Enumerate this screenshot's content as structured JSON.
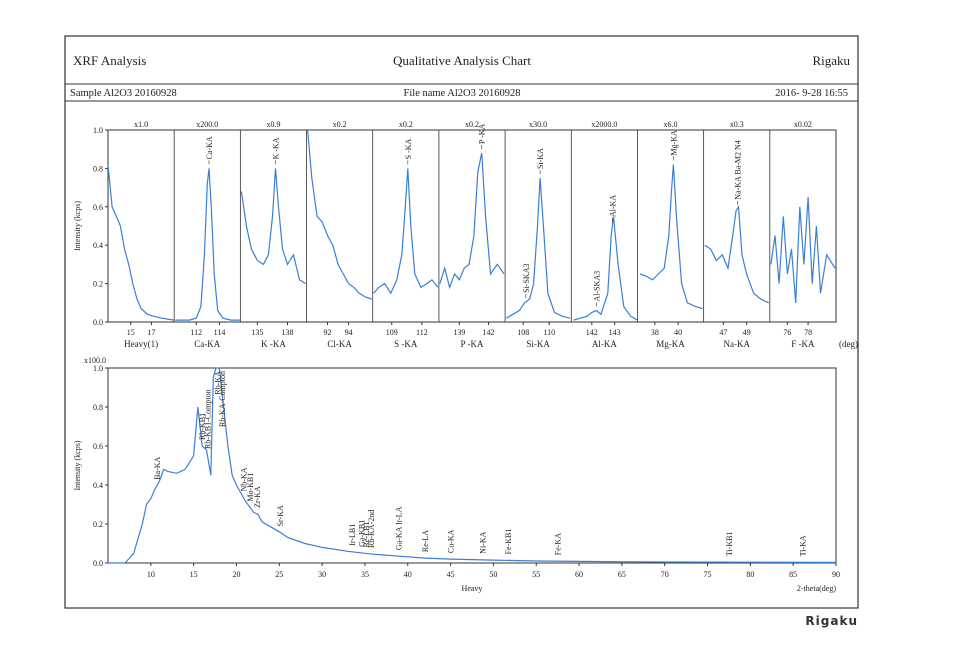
{
  "header": {
    "left": "XRF Analysis",
    "center": "Qualitative Analysis Chart",
    "right": "Rigaku"
  },
  "info": {
    "sample": "Sample  Al2O3 20160928",
    "file": "File name  Al2O3 20160928",
    "date": "2016- 9-28 16:55"
  },
  "footer": "Rigaku",
  "chart_data": [
    {
      "type": "line",
      "y_label": "Intensity (kcps)",
      "x_unit": "(deg)",
      "color": "#3a7fd5",
      "ylim": [
        0,
        1
      ],
      "yticks": [
        {
          "value": 0,
          "label": "0.0"
        },
        {
          "value": 0.2,
          "label": "0.2"
        },
        {
          "value": 0.4,
          "label": "0.4"
        },
        {
          "value": 0.6,
          "label": "0.6"
        },
        {
          "value": 0.8,
          "label": "0.8"
        },
        {
          "value": 1,
          "label": "1.0"
        }
      ],
      "panels": [
        {
          "scale": "x1.0",
          "label": "Heavy(1)",
          "xlim": [
            12.8,
            19.2
          ],
          "xticks": [
            15,
            17
          ],
          "peaks": [],
          "x": [
            12.8,
            13.2,
            13.6,
            14.0,
            14.4,
            14.8,
            15.2,
            15.6,
            16.0,
            16.6,
            17.2,
            18.0,
            19.2
          ],
          "values": [
            0.82,
            0.6,
            0.55,
            0.5,
            0.38,
            0.3,
            0.2,
            0.12,
            0.07,
            0.04,
            0.03,
            0.02,
            0.01
          ]
        },
        {
          "scale": "x200.0",
          "label": "Ca-KA",
          "xlim": [
            110.1,
            115.8
          ],
          "xticks": [
            112,
            114
          ],
          "peaks": [
            {
              "text": "Ca-KA",
              "x": 113.1
            }
          ],
          "x": [
            110.2,
            110.8,
            111.4,
            112.0,
            112.4,
            112.7,
            112.95,
            113.1,
            113.3,
            113.55,
            113.85,
            114.3,
            115.0,
            115.8
          ],
          "values": [
            0.01,
            0.01,
            0.01,
            0.02,
            0.08,
            0.35,
            0.72,
            0.8,
            0.6,
            0.25,
            0.06,
            0.02,
            0.01,
            0.01
          ]
        },
        {
          "scale": "x0.9",
          "label": "K -KA",
          "xlim": [
            133.3,
            139.9
          ],
          "xticks": [
            135,
            138
          ],
          "peaks": [
            {
              "text": "K -KA",
              "x": 136.8
            }
          ],
          "x": [
            133.4,
            133.9,
            134.4,
            135.0,
            135.6,
            136.1,
            136.5,
            136.8,
            137.1,
            137.5,
            138.0,
            138.6,
            139.2,
            139.8
          ],
          "values": [
            0.68,
            0.5,
            0.38,
            0.32,
            0.3,
            0.35,
            0.55,
            0.8,
            0.6,
            0.38,
            0.3,
            0.35,
            0.22,
            0.2
          ]
        },
        {
          "scale": "x0.2",
          "label": "Cl-KA",
          "xlim": [
            90,
            96.3
          ],
          "xticks": [
            92,
            94
          ],
          "peaks": [],
          "x": [
            90.1,
            90.5,
            91.0,
            91.5,
            92.0,
            92.5,
            93.0,
            93.5,
            94.0,
            94.5,
            95.0,
            95.6,
            96.2
          ],
          "values": [
            1.0,
            0.75,
            0.55,
            0.52,
            0.45,
            0.4,
            0.3,
            0.25,
            0.2,
            0.18,
            0.15,
            0.13,
            0.12
          ]
        },
        {
          "scale": "x0.2",
          "label": "S -KA",
          "xlim": [
            107.1,
            113.7
          ],
          "xticks": [
            109,
            112
          ],
          "peaks": [
            {
              "text": "S -KA",
              "x": 110.6
            }
          ],
          "x": [
            107.2,
            107.7,
            108.3,
            108.9,
            109.5,
            110.0,
            110.35,
            110.6,
            110.9,
            111.3,
            111.9,
            112.5,
            113.0,
            113.6
          ],
          "values": [
            0.15,
            0.18,
            0.2,
            0.15,
            0.22,
            0.35,
            0.6,
            0.8,
            0.5,
            0.25,
            0.18,
            0.2,
            0.22,
            0.18
          ]
        },
        {
          "scale": "x0.2",
          "label": "P -KA",
          "xlim": [
            136.9,
            143.7
          ],
          "xticks": [
            139,
            142
          ],
          "peaks": [
            {
              "text": "P -KA",
              "x": 141.3
            }
          ],
          "x": [
            137.0,
            137.5,
            138.0,
            138.5,
            139.0,
            139.5,
            140.0,
            140.5,
            140.9,
            141.3,
            141.7,
            142.2,
            142.9,
            143.6
          ],
          "values": [
            0.2,
            0.28,
            0.18,
            0.25,
            0.22,
            0.28,
            0.3,
            0.45,
            0.78,
            0.88,
            0.55,
            0.25,
            0.3,
            0.25
          ]
        },
        {
          "scale": "x30.0",
          "label": "Si-KA",
          "xlim": [
            106.6,
            111.7
          ],
          "xticks": [
            108,
            110
          ],
          "peaks": [
            {
              "text": "Si-SKA3",
              "x": 108.2
            },
            {
              "text": "Si-KA",
              "x": 109.3
            }
          ],
          "x": [
            106.7,
            107.2,
            107.7,
            108.1,
            108.5,
            108.8,
            109.1,
            109.3,
            109.55,
            109.9,
            110.4,
            111.0,
            111.6
          ],
          "values": [
            0.02,
            0.04,
            0.06,
            0.1,
            0.12,
            0.2,
            0.5,
            0.75,
            0.5,
            0.15,
            0.05,
            0.03,
            0.02
          ]
        },
        {
          "scale": "x2000.0",
          "label": "Al-KA",
          "xlim": [
            141.1,
            144.0
          ],
          "xticks": [
            142,
            143
          ],
          "peaks": [
            {
              "text": "Al-SKA3",
              "x": 142.2
            },
            {
              "text": "Al-KA",
              "x": 142.9
            }
          ],
          "x": [
            141.2,
            141.5,
            141.8,
            142.0,
            142.2,
            142.4,
            142.7,
            142.85,
            142.95,
            143.15,
            143.4,
            143.7,
            144.0
          ],
          "values": [
            0.01,
            0.02,
            0.03,
            0.05,
            0.06,
            0.04,
            0.15,
            0.45,
            0.55,
            0.3,
            0.08,
            0.03,
            0.01
          ]
        },
        {
          "scale": "x6.0",
          "label": "Mg-KA",
          "xlim": [
            36.5,
            42.2
          ],
          "xticks": [
            38,
            40
          ],
          "peaks": [
            {
              "text": "Mg-KA",
              "x": 39.6
            }
          ],
          "x": [
            36.7,
            37.2,
            37.8,
            38.3,
            38.8,
            39.2,
            39.45,
            39.6,
            39.85,
            40.3,
            40.8,
            41.5,
            42.1
          ],
          "values": [
            0.25,
            0.24,
            0.22,
            0.25,
            0.28,
            0.45,
            0.7,
            0.82,
            0.55,
            0.2,
            0.1,
            0.08,
            0.07
          ]
        },
        {
          "scale": "x0.3",
          "label": "Na-KA",
          "xlim": [
            45.3,
            51.0
          ],
          "xticks": [
            47,
            49
          ],
          "peaks": [
            {
              "text": "Na-KA Ba-M2 N4",
              "x": 48.2
            }
          ],
          "x": [
            45.4,
            45.9,
            46.4,
            46.9,
            47.4,
            47.8,
            48.1,
            48.3,
            48.6,
            49.0,
            49.6,
            50.2,
            50.9
          ],
          "values": [
            0.4,
            0.38,
            0.32,
            0.35,
            0.28,
            0.45,
            0.58,
            0.6,
            0.35,
            0.25,
            0.15,
            0.12,
            0.1
          ]
        },
        {
          "scale": "x0.02",
          "label": "F -KA",
          "xlim": [
            74.3,
            80.7
          ],
          "xticks": [
            76,
            78
          ],
          "peaks": [],
          "x": [
            74.4,
            74.8,
            75.2,
            75.6,
            76.0,
            76.4,
            76.8,
            77.2,
            77.6,
            78.0,
            78.4,
            78.8,
            79.2,
            79.8,
            80.6
          ],
          "values": [
            0.3,
            0.45,
            0.2,
            0.55,
            0.25,
            0.38,
            0.1,
            0.6,
            0.3,
            0.65,
            0.2,
            0.5,
            0.15,
            0.35,
            0.28
          ]
        }
      ]
    },
    {
      "type": "line",
      "scale": "x100.0",
      "y_label": "Intensity (kcps)",
      "x_label": "Heavy",
      "x_unit": "2-theta(deg)",
      "color": "#3a7fd5",
      "xlim": [
        5,
        90
      ],
      "xticks": [
        10,
        15,
        20,
        25,
        30,
        35,
        40,
        45,
        50,
        55,
        60,
        65,
        70,
        75,
        80,
        85,
        90
      ],
      "ylim": [
        0,
        1
      ],
      "yticks": [
        {
          "value": 0,
          "label": "0.0"
        },
        {
          "value": 0.2,
          "label": "0.2"
        },
        {
          "value": 0.4,
          "label": "0.4"
        },
        {
          "value": 0.6,
          "label": "0.6"
        },
        {
          "value": 0.8,
          "label": "0.8"
        },
        {
          "value": 1,
          "label": "1.0"
        }
      ],
      "x": [
        5,
        6,
        7,
        8,
        9,
        9.5,
        10,
        10.5,
        11,
        11.5,
        12,
        13,
        14,
        15,
        15.5,
        16,
        16.5,
        17,
        17.3,
        17.6,
        18,
        18.5,
        19,
        19.5,
        20,
        21,
        22,
        22.5,
        23,
        25,
        26,
        28,
        30,
        33,
        35,
        36,
        39,
        42,
        45,
        50,
        55,
        60,
        70,
        80,
        90
      ],
      "values": [
        0,
        0,
        0,
        0.05,
        0.2,
        0.3,
        0.33,
        0.38,
        0.42,
        0.48,
        0.47,
        0.46,
        0.48,
        0.55,
        0.8,
        0.6,
        0.58,
        0.45,
        0.95,
        1.0,
        1.0,
        0.8,
        0.6,
        0.45,
        0.4,
        0.32,
        0.26,
        0.25,
        0.21,
        0.16,
        0.13,
        0.1,
        0.08,
        0.06,
        0.05,
        0.045,
        0.035,
        0.025,
        0.02,
        0.015,
        0.01,
        0.008,
        0.005,
        0.004,
        0.003
      ],
      "peaks": [
        {
          "text": "Ba-KA",
          "x": 10.7
        },
        {
          "text": "Rb-KB1",
          "x": 16.0
        },
        {
          "text": "Rb-KB1-Compton",
          "x": 16.6
        },
        {
          "text": "Rb-KA",
          "x": 17.8
        },
        {
          "text": "Rb-KA-Compton",
          "x": 18.3
        },
        {
          "text": "Nb-KA",
          "x": 20.8
        },
        {
          "text": "Mo-KB1",
          "x": 21.6
        },
        {
          "text": "Zr-KA",
          "x": 22.4
        },
        {
          "text": "Sr-KA",
          "x": 25.1
        },
        {
          "text": "Ir-LB1",
          "x": 33.5
        },
        {
          "text": "Ga-KB1",
          "x": 34.6
        },
        {
          "text": "Re-LB1",
          "x": 35.1
        },
        {
          "text": "Rb-KA-2nd",
          "x": 35.7
        },
        {
          "text": "Ga-KA Ir-LA",
          "x": 38.9
        },
        {
          "text": "Re-LA",
          "x": 42.0
        },
        {
          "text": "Cu-KA",
          "x": 45.0
        },
        {
          "text": "Ni-KA",
          "x": 48.7
        },
        {
          "text": "Fe-KB1",
          "x": 51.7
        },
        {
          "text": "Fe-KA",
          "x": 57.5
        },
        {
          "text": "Ti-KB1",
          "x": 77.5
        },
        {
          "text": "Ti-KA",
          "x": 86.1
        }
      ]
    }
  ]
}
